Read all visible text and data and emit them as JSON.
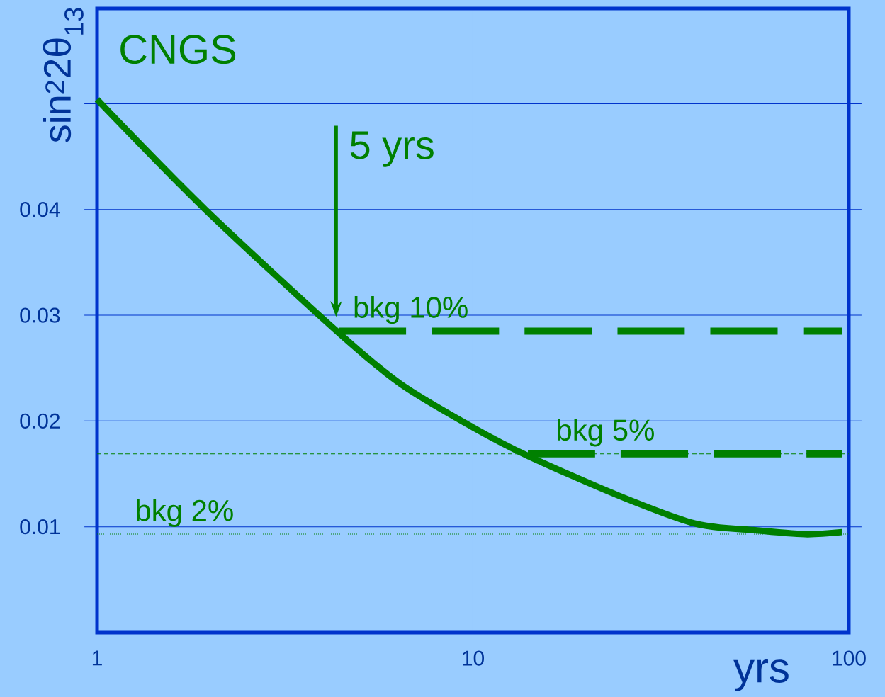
{
  "chart_data": {
    "type": "line",
    "title": "CNGS",
    "ylabel": "sin$^{2}$2θ$_{13}$",
    "xlabel": "yrs",
    "log": "x",
    "grid": true,
    "line_style": "solid",
    "marker": "none",
    "xlim": [
      1,
      100
    ],
    "xticks": [
      1,
      10,
      100
    ],
    "ylim": [
      0,
      0.059
    ],
    "yticks": [
      0.01,
      0.02,
      0.03,
      0.04,
      {
        "value": 0.05,
        "label": null
      }
    ],
    "series": [
      {
        "color": "#008000",
        "x": [
          1,
          1.94,
          4.34,
          6.42,
          10,
          14,
          24.2,
          39,
          55.2,
          76.4,
          96
        ],
        "values": [
          0.0504,
          0.04,
          0.0285,
          0.0235,
          0.0194,
          0.0167,
          0.013,
          0.0103,
          0.0097,
          0.0093,
          0.0095
        ]
      },
      {
        "color": "#008000",
        "line_style": "dashed",
        "x": [
          4.4,
          96
        ],
        "values": [
          0.0285,
          0.0285
        ]
      },
      {
        "color": "#008000",
        "line_style": "dashed",
        "x": [
          14,
          96
        ],
        "values": [
          0.0169,
          0.0169
        ]
      }
    ],
    "ref_lines": [
      {
        "axis": "y",
        "value": 0.0285,
        "label": "bkg 10%",
        "color": "#008000",
        "line_style": "dashed"
      },
      {
        "axis": "y",
        "value": 0.0169,
        "label": "bkg 5%",
        "color": "#008000",
        "line_style": "dashed"
      },
      {
        "axis": "y",
        "value": 0.0093,
        "label": "bkg 2%",
        "color": "#008000",
        "line_style": "dotted"
      }
    ],
    "annotations": [
      "5 yrs"
    ]
  }
}
